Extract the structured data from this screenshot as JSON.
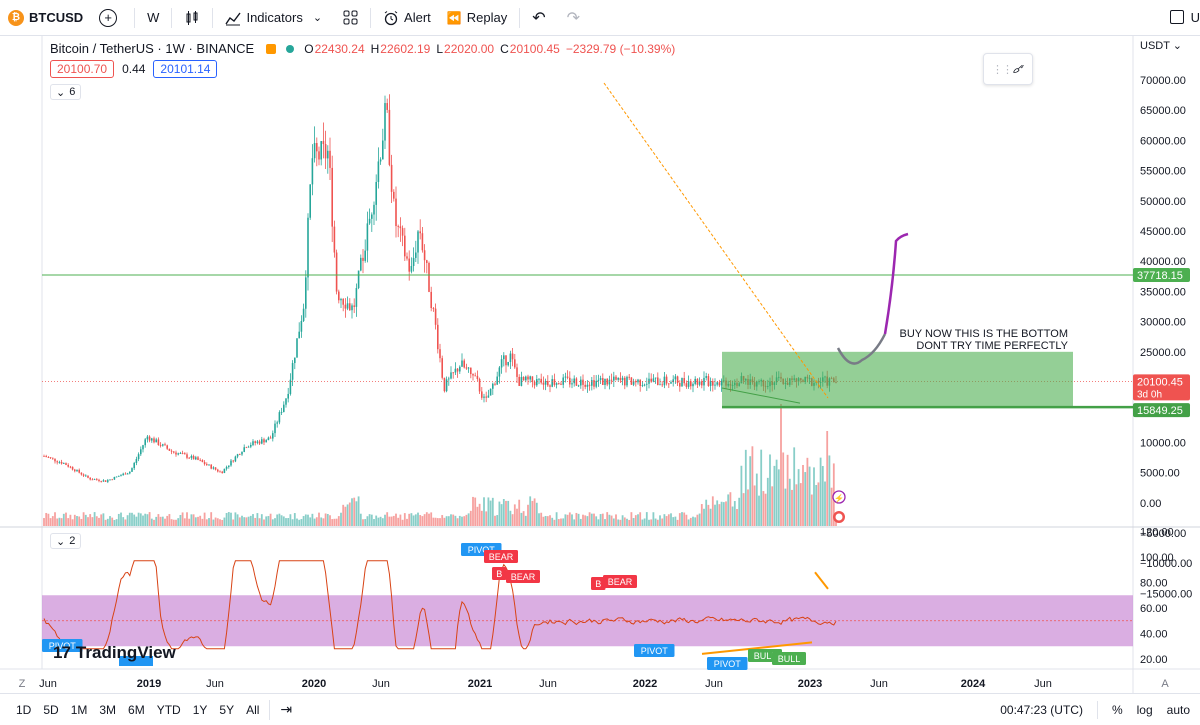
{
  "toolbar": {
    "symbol": "BTCUSD",
    "interval": "W",
    "indicators_label": "Indicators",
    "alert_label": "Alert",
    "replay_label": "Replay",
    "layout_letter": "U"
  },
  "legend": {
    "title": "Bitcoin / TetherUS · 1W · BINANCE",
    "open_label": "O",
    "open": "22430.24",
    "high_label": "H",
    "high": "22602.19",
    "low_label": "L",
    "low": "22020.00",
    "close_label": "C",
    "close": "20100.45",
    "change": "−2329.79 (−10.39%)",
    "bid": "20100.70",
    "spread": "0.44",
    "ask": "20101.14",
    "main_collapse": "6",
    "rsi_collapse": "2"
  },
  "price_axis": {
    "currency": "USDT",
    "labels": [
      "70000.00",
      "65000.00",
      "60000.00",
      "55000.00",
      "50000.00",
      "45000.00",
      "40000.00",
      "35000.00",
      "30000.00",
      "25000.00",
      "20000.00",
      "15000.00",
      "10000.00",
      "5000.00",
      "0.00",
      "−5000.00",
      "−10000.00",
      "−15000.00"
    ],
    "tag_resistance": "37718.15",
    "tag_price": "20100.45",
    "tag_countdown": "3d 0h",
    "tag_support": "15849.25"
  },
  "rsi_axis": {
    "labels": [
      "120.00",
      "100.00",
      "80.00",
      "60.00",
      "40.00",
      "20.00"
    ]
  },
  "time_axis": {
    "labels": [
      "Jun",
      "2019",
      "Jun",
      "2020",
      "Jun",
      "2021",
      "Jun",
      "2022",
      "Jun",
      "2023",
      "Jun",
      "2024",
      "Jun"
    ]
  },
  "annotation": {
    "line1": "BUY NOW THIS IS THE BOTTOM",
    "line2": "DONT TRY TIME PERFECTLY"
  },
  "rsi_labels": {
    "pivot": "PIVOT",
    "bear": "BEAR",
    "b": "B",
    "bull": "BULL"
  },
  "watermark": "TradingView",
  "bottom_bar": {
    "ranges": [
      "1D",
      "5D",
      "1M",
      "3M",
      "6M",
      "YTD",
      "1Y",
      "5Y",
      "All"
    ],
    "time": "00:47:23 (UTC)",
    "percent": "%",
    "log": "log",
    "auto": "auto",
    "z_label": "Z",
    "a_label": "A"
  },
  "colors": {
    "up": "#26a69a",
    "down": "#ef5350",
    "trend": "#ff9800",
    "zone": "#4caf50",
    "rsi_band": "#ce93d8",
    "projection": "#9c27b0"
  },
  "chart_data": {
    "type": "candlestick",
    "interval": "1W",
    "axis_currency": "USDT",
    "approx_weekly_close": [
      [
        "2018-05",
        8000
      ],
      [
        "2018-08",
        6500
      ],
      [
        "2018-11",
        4000
      ],
      [
        "2019-01",
        3600
      ],
      [
        "2019-04",
        5200
      ],
      [
        "2019-06",
        11000
      ],
      [
        "2019-09",
        8500
      ],
      [
        "2019-12",
        7200
      ],
      [
        "2020-03",
        5000
      ],
      [
        "2020-06",
        9500
      ],
      [
        "2020-09",
        10700
      ],
      [
        "2020-11",
        18000
      ],
      [
        "2021-01",
        33000
      ],
      [
        "2021-02",
        57000
      ],
      [
        "2021-04",
        58000
      ],
      [
        "2021-05",
        35000
      ],
      [
        "2021-07",
        32000
      ],
      [
        "2021-09",
        47000
      ],
      [
        "2021-11",
        65000
      ],
      [
        "2021-12",
        47000
      ],
      [
        "2022-02",
        38000
      ],
      [
        "2022-03",
        46000
      ],
      [
        "2022-05",
        29000
      ],
      [
        "2022-06",
        19000
      ],
      [
        "2022-08",
        23000
      ],
      [
        "2022-10",
        20000
      ],
      [
        "2022-11",
        16500
      ],
      [
        "2023-01",
        23000
      ],
      [
        "2023-02",
        24500
      ],
      [
        "2023-03",
        20100
      ]
    ],
    "hlines": [
      37718.15,
      15849.25
    ],
    "zone": [
      15849.25,
      25000
    ]
  }
}
